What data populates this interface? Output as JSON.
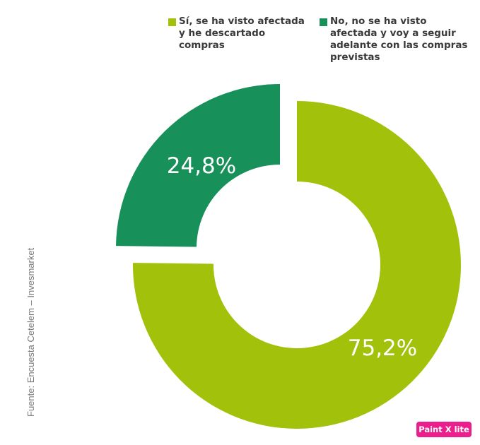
{
  "chart_data": {
    "type": "pie",
    "donut": true,
    "legend_position": "top",
    "slices": [
      {
        "label": "Sí, se ha visto afectada y he descartado compras",
        "value": 75.2,
        "display": "75,2%",
        "color": "#a2c10b"
      },
      {
        "label": "No, no se ha visto afectada y voy a seguir adelante con las compras previstas",
        "value": 24.8,
        "display": "24,8%",
        "color": "#17905a"
      }
    ]
  },
  "source_note": "Fuente: Encuesta Cetelem – Invesmarket",
  "badge": {
    "label": "Paint X lite",
    "color": "#ea1e8c"
  }
}
